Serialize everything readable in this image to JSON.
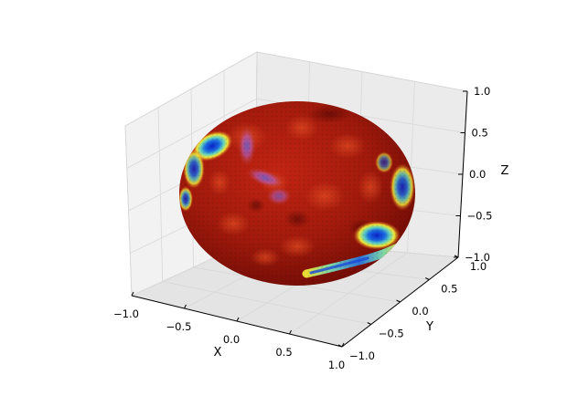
{
  "chart_data": {
    "type": "surface",
    "projection": "3d",
    "surface_shape": "unit sphere",
    "colormap": "jet",
    "colors": {
      "dominant": "#8c1008",
      "mid": "#d23a18",
      "yellow": "#f2e836",
      "cyan": "#5fd0c0",
      "blue": "#0a30d0",
      "pane": "#f2f2f2",
      "grid": "#dcdcdc"
    },
    "axes": {
      "x": {
        "label": "X",
        "lim": [
          -1.0,
          1.0
        ],
        "ticks": [
          -1.0,
          -0.5,
          0.0,
          0.5,
          1.0
        ],
        "tick_labels": [
          "−1.0",
          "−0.5",
          "0.0",
          "0.5",
          "1.0"
        ]
      },
      "y": {
        "label": "Y",
        "lim": [
          -1.0,
          1.0
        ],
        "ticks": [
          -1.0,
          -0.5,
          0.0,
          0.5,
          1.0
        ],
        "tick_labels": [
          "−1.0",
          "−0.5",
          "0.0",
          "0.5",
          "1.0"
        ]
      },
      "z": {
        "label": "Z",
        "lim": [
          -1.0,
          1.0
        ],
        "ticks": [
          -1.0,
          -0.5,
          0.0,
          0.5,
          1.0
        ],
        "tick_labels": [
          "−1.0",
          "−0.5",
          "0.0",
          "0.5",
          "1.0"
        ]
      }
    },
    "grid": true,
    "legend": false,
    "title": ""
  }
}
